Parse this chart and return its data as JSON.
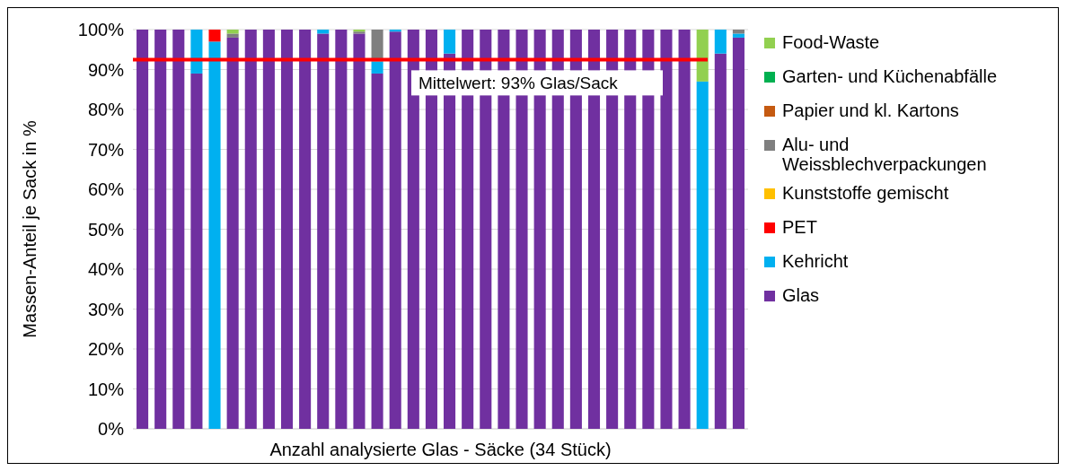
{
  "chart_data": {
    "type": "bar",
    "stacked": true,
    "xlabel": "Anzahl analysierte Glas - Säcke (34 Stück)",
    "ylabel": "Massen-Anteil je Sack in %",
    "categories": [
      null,
      null,
      null,
      null,
      null,
      null,
      null,
      null,
      null,
      null,
      null,
      null,
      null,
      null,
      null,
      null,
      null,
      null,
      null,
      null,
      null,
      null,
      null,
      null,
      null,
      null,
      null,
      null,
      null,
      null,
      null,
      null,
      null,
      null
    ],
    "series": [
      {
        "name": "Glas",
        "color": "#7030a0",
        "values": [
          100,
          100,
          100,
          89,
          0,
          98,
          100,
          100,
          100,
          100,
          99,
          100,
          99,
          89,
          99.5,
          100,
          100,
          94,
          100,
          100,
          100,
          100,
          100,
          100,
          100,
          100,
          100,
          100,
          100,
          100,
          100,
          0,
          94,
          98
        ]
      },
      {
        "name": "Kehricht",
        "color": "#00b0f0",
        "values": [
          0,
          0,
          0,
          11,
          97,
          0,
          0,
          0,
          0,
          0,
          1,
          0,
          0,
          3,
          0.5,
          0,
          0,
          6,
          0,
          0,
          0,
          0,
          0,
          0,
          0,
          0,
          0,
          0,
          0,
          0,
          0,
          87,
          6,
          1
        ]
      },
      {
        "name": "PET",
        "color": "#ff0000",
        "values": [
          0,
          0,
          0,
          0,
          3,
          0,
          0,
          0,
          0,
          0,
          0,
          0,
          0,
          0,
          0,
          0,
          0,
          0,
          0,
          0,
          0,
          0,
          0,
          0,
          0,
          0,
          0,
          0,
          0,
          0,
          0,
          0,
          0,
          0
        ]
      },
      {
        "name": "Kunststoffe gemischt",
        "color": "#ffc000",
        "values": [
          0,
          0,
          0,
          0,
          0,
          0,
          0,
          0,
          0,
          0,
          0,
          0,
          0,
          0,
          0,
          0,
          0,
          0,
          0,
          0,
          0,
          0,
          0,
          0,
          0,
          0,
          0,
          0,
          0,
          0,
          0,
          0,
          0,
          0
        ]
      },
      {
        "name": "Alu- und Weissblechverpackungen",
        "color": "#7f7f7f",
        "values": [
          0,
          0,
          0,
          0,
          0,
          1,
          0,
          0,
          0,
          0,
          0,
          0,
          0.5,
          8,
          0,
          0,
          0,
          0,
          0,
          0,
          0,
          0,
          0,
          0,
          0,
          0,
          0,
          0,
          0,
          0,
          0,
          0,
          0,
          1
        ]
      },
      {
        "name": "Papier und kl. Kartons",
        "color": "#c55a11",
        "values": [
          0,
          0,
          0,
          0,
          0,
          0,
          0,
          0,
          0,
          0,
          0,
          0,
          0,
          0,
          0,
          0,
          0,
          0,
          0,
          0,
          0,
          0,
          0,
          0,
          0,
          0,
          0,
          0,
          0,
          0,
          0,
          0,
          0,
          0
        ]
      },
      {
        "name": "Garten- und Küchenabfälle",
        "color": "#00b050",
        "values": [
          0,
          0,
          0,
          0,
          0,
          0,
          0,
          0,
          0,
          0,
          0,
          0,
          0,
          0,
          0,
          0,
          0,
          0,
          0,
          0,
          0,
          0,
          0,
          0,
          0,
          0,
          0,
          0,
          0,
          0,
          0,
          0,
          0,
          0
        ]
      },
      {
        "name": "Food-Waste",
        "color": "#92d050",
        "values": [
          0,
          0,
          0,
          0,
          0,
          1,
          0,
          0,
          0,
          0,
          0,
          0,
          0.5,
          0,
          0,
          0,
          0,
          0,
          0,
          0,
          0,
          0,
          0,
          0,
          0,
          0,
          0,
          0,
          0,
          0,
          0,
          13,
          0,
          0
        ]
      }
    ],
    "ylim": [
      0,
      100
    ],
    "yticks": [
      {
        "value": 0,
        "label": "0%"
      },
      {
        "value": 10,
        "label": "10%"
      },
      {
        "value": 20,
        "label": "20%"
      },
      {
        "value": 30,
        "label": "30%"
      },
      {
        "value": 40,
        "label": "40%"
      },
      {
        "value": 50,
        "label": "50%"
      },
      {
        "value": 60,
        "label": "60%"
      },
      {
        "value": 70,
        "label": "70%"
      },
      {
        "value": 80,
        "label": "80%"
      },
      {
        "value": 90,
        "label": "90%"
      },
      {
        "value": 100,
        "label": "100%"
      }
    ],
    "ref_lines": [
      {
        "axis": "y",
        "value": 92.5,
        "label": "Mittelwert: 93% Glas/Sack",
        "color": "#ff0000"
      }
    ],
    "grid": "y",
    "legend": "right"
  }
}
